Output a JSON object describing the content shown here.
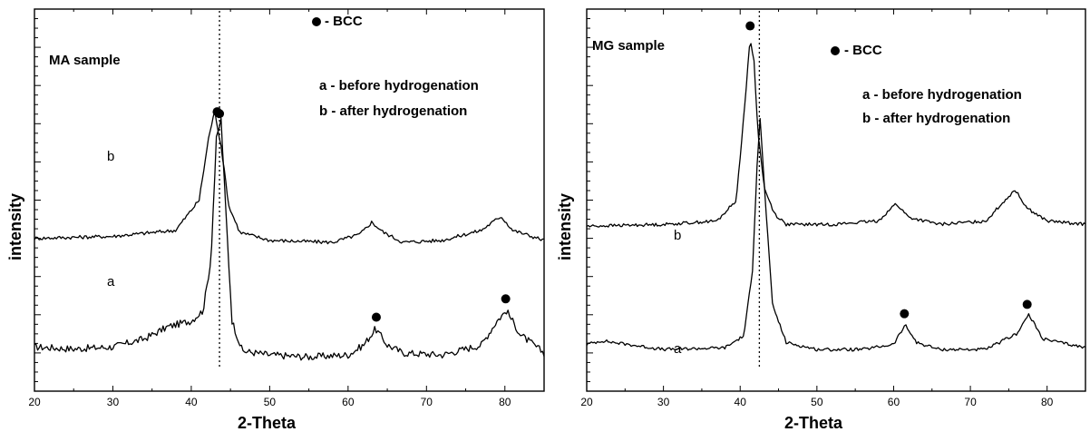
{
  "chart_data": [
    {
      "type": "line",
      "title": "MA sample",
      "xlabel": "2-Theta",
      "ylabel": "intensity",
      "xlim": [
        20,
        85
      ],
      "xticks": [
        20,
        30,
        40,
        50,
        60,
        70,
        80
      ],
      "y_tick_labels": false,
      "legend": {
        "marker_label": "- BCC",
        "entries": [
          "a - before hydrogenation",
          "b - after hydrogenation"
        ],
        "placement": "top-right"
      },
      "reference_line_x": 43.6,
      "series": [
        {
          "name": "a",
          "baseline": 5.2,
          "x": [
            20,
            25,
            30,
            34,
            37,
            40,
            41.5,
            42.5,
            43.2,
            43.8,
            44.4,
            45.2,
            46.5,
            50,
            55,
            60,
            62,
            63.5,
            65,
            67,
            72,
            77,
            79,
            80.2,
            82,
            85
          ],
          "y": [
            5.2,
            5.1,
            5.2,
            5.6,
            6.2,
            6.5,
            7.0,
            9.5,
            15.5,
            16.5,
            12.0,
            6.5,
            5.0,
            4.8,
            4.7,
            4.8,
            5.3,
            6.1,
            5.3,
            4.9,
            4.8,
            5.3,
            6.5,
            7.0,
            5.8,
            4.9
          ],
          "peak_markers_x": [
            43.6,
            63.6,
            80.1
          ],
          "label": "a"
        },
        {
          "name": "b",
          "baseline": 10.6,
          "x": [
            20,
            30,
            38,
            41,
            42.3,
            43.0,
            43.8,
            44.8,
            46.2,
            50,
            58,
            61.5,
            63,
            64.5,
            67,
            72,
            77,
            79.5,
            81,
            85
          ],
          "y": [
            10.6,
            10.7,
            11.0,
            12.5,
            15.8,
            16.9,
            15.2,
            12.2,
            10.9,
            10.5,
            10.4,
            10.8,
            11.4,
            10.9,
            10.4,
            10.5,
            11.0,
            11.7,
            11.0,
            10.5
          ],
          "peak_markers_x": [
            43.3
          ],
          "label": "b"
        }
      ]
    },
    {
      "type": "line",
      "title": "MG sample",
      "xlabel": "2-Theta",
      "ylabel": "intensity",
      "xlim": [
        20,
        85
      ],
      "xticks": [
        20,
        30,
        40,
        50,
        60,
        70,
        80
      ],
      "y_tick_labels": false,
      "legend": {
        "marker_label": "- BCC",
        "entries": [
          "a - before hydrogenation",
          "b - after hydrogenation"
        ],
        "placement": "top-right"
      },
      "reference_line_x": 42.5,
      "series": [
        {
          "name": "a",
          "baseline": 3.5,
          "x": [
            20,
            22,
            30,
            38,
            40.5,
            41.6,
            42.2,
            42.6,
            43.2,
            44.2,
            46,
            50,
            56,
            60,
            61.5,
            63,
            66,
            72,
            76,
            77.6,
            79.5,
            85
          ],
          "y": [
            3.7,
            3.9,
            3.4,
            3.5,
            4.2,
            8.0,
            14.0,
            16.7,
            12.5,
            6.0,
            3.8,
            3.4,
            3.4,
            3.7,
            4.8,
            3.8,
            3.4,
            3.4,
            4.3,
            5.4,
            4.0,
            3.5
          ],
          "peak_markers_x": [
            61.4,
            77.4
          ],
          "label": "a"
        },
        {
          "name": "b",
          "baseline": 10.5,
          "x": [
            20,
            30,
            37,
            39.5,
            40.6,
            41.3,
            41.8,
            42.3,
            43.2,
            44.5,
            46,
            52,
            58,
            60.3,
            62,
            66,
            72,
            75.8,
            77.5,
            80,
            85
          ],
          "y": [
            10.5,
            10.6,
            10.8,
            12.0,
            17.5,
            21.3,
            20.0,
            16.0,
            12.6,
            11.2,
            10.6,
            10.6,
            10.8,
            11.8,
            11.0,
            10.6,
            10.8,
            12.6,
            11.5,
            10.8,
            10.6
          ],
          "peak_markers_x": [
            41.3
          ],
          "label": "b"
        }
      ]
    }
  ]
}
